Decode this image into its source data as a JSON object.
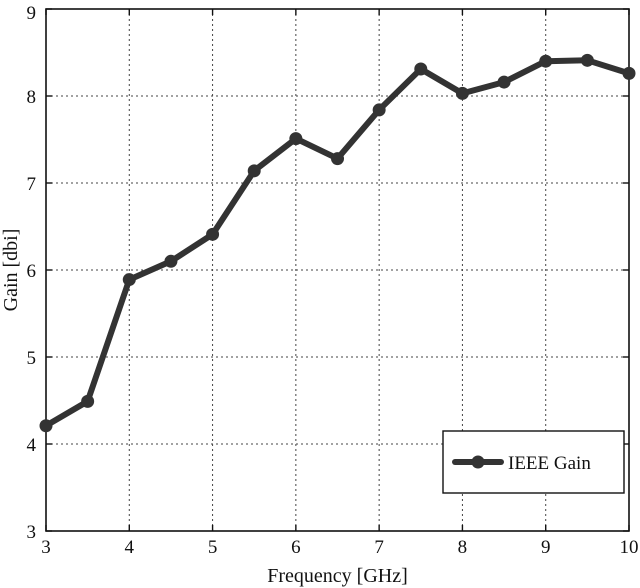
{
  "chart_data": {
    "type": "line",
    "title": "",
    "xlabel": "Frequency [GHz]",
    "ylabel": "Gain [dbi]",
    "xlim": [
      3,
      10
    ],
    "ylim": [
      3,
      9
    ],
    "x_ticks": [
      "3",
      "4",
      "5",
      "6",
      "7",
      "8",
      "9",
      "10"
    ],
    "y_ticks": [
      "3",
      "4",
      "5",
      "6",
      "7",
      "8",
      "9"
    ],
    "grid": true,
    "legend_position": "bottom-right",
    "series": [
      {
        "name": "IEEE Gain",
        "color": "#333333",
        "marker": "circle",
        "x": [
          3,
          3.5,
          4,
          4.5,
          5,
          5.5,
          6,
          6.5,
          7,
          7.5,
          8,
          8.5,
          9,
          9.5,
          10
        ],
        "y": [
          4.21,
          4.49,
          5.89,
          6.1,
          6.41,
          7.14,
          7.51,
          7.28,
          7.84,
          8.31,
          8.03,
          8.16,
          8.4,
          8.41,
          8.26
        ]
      }
    ]
  }
}
